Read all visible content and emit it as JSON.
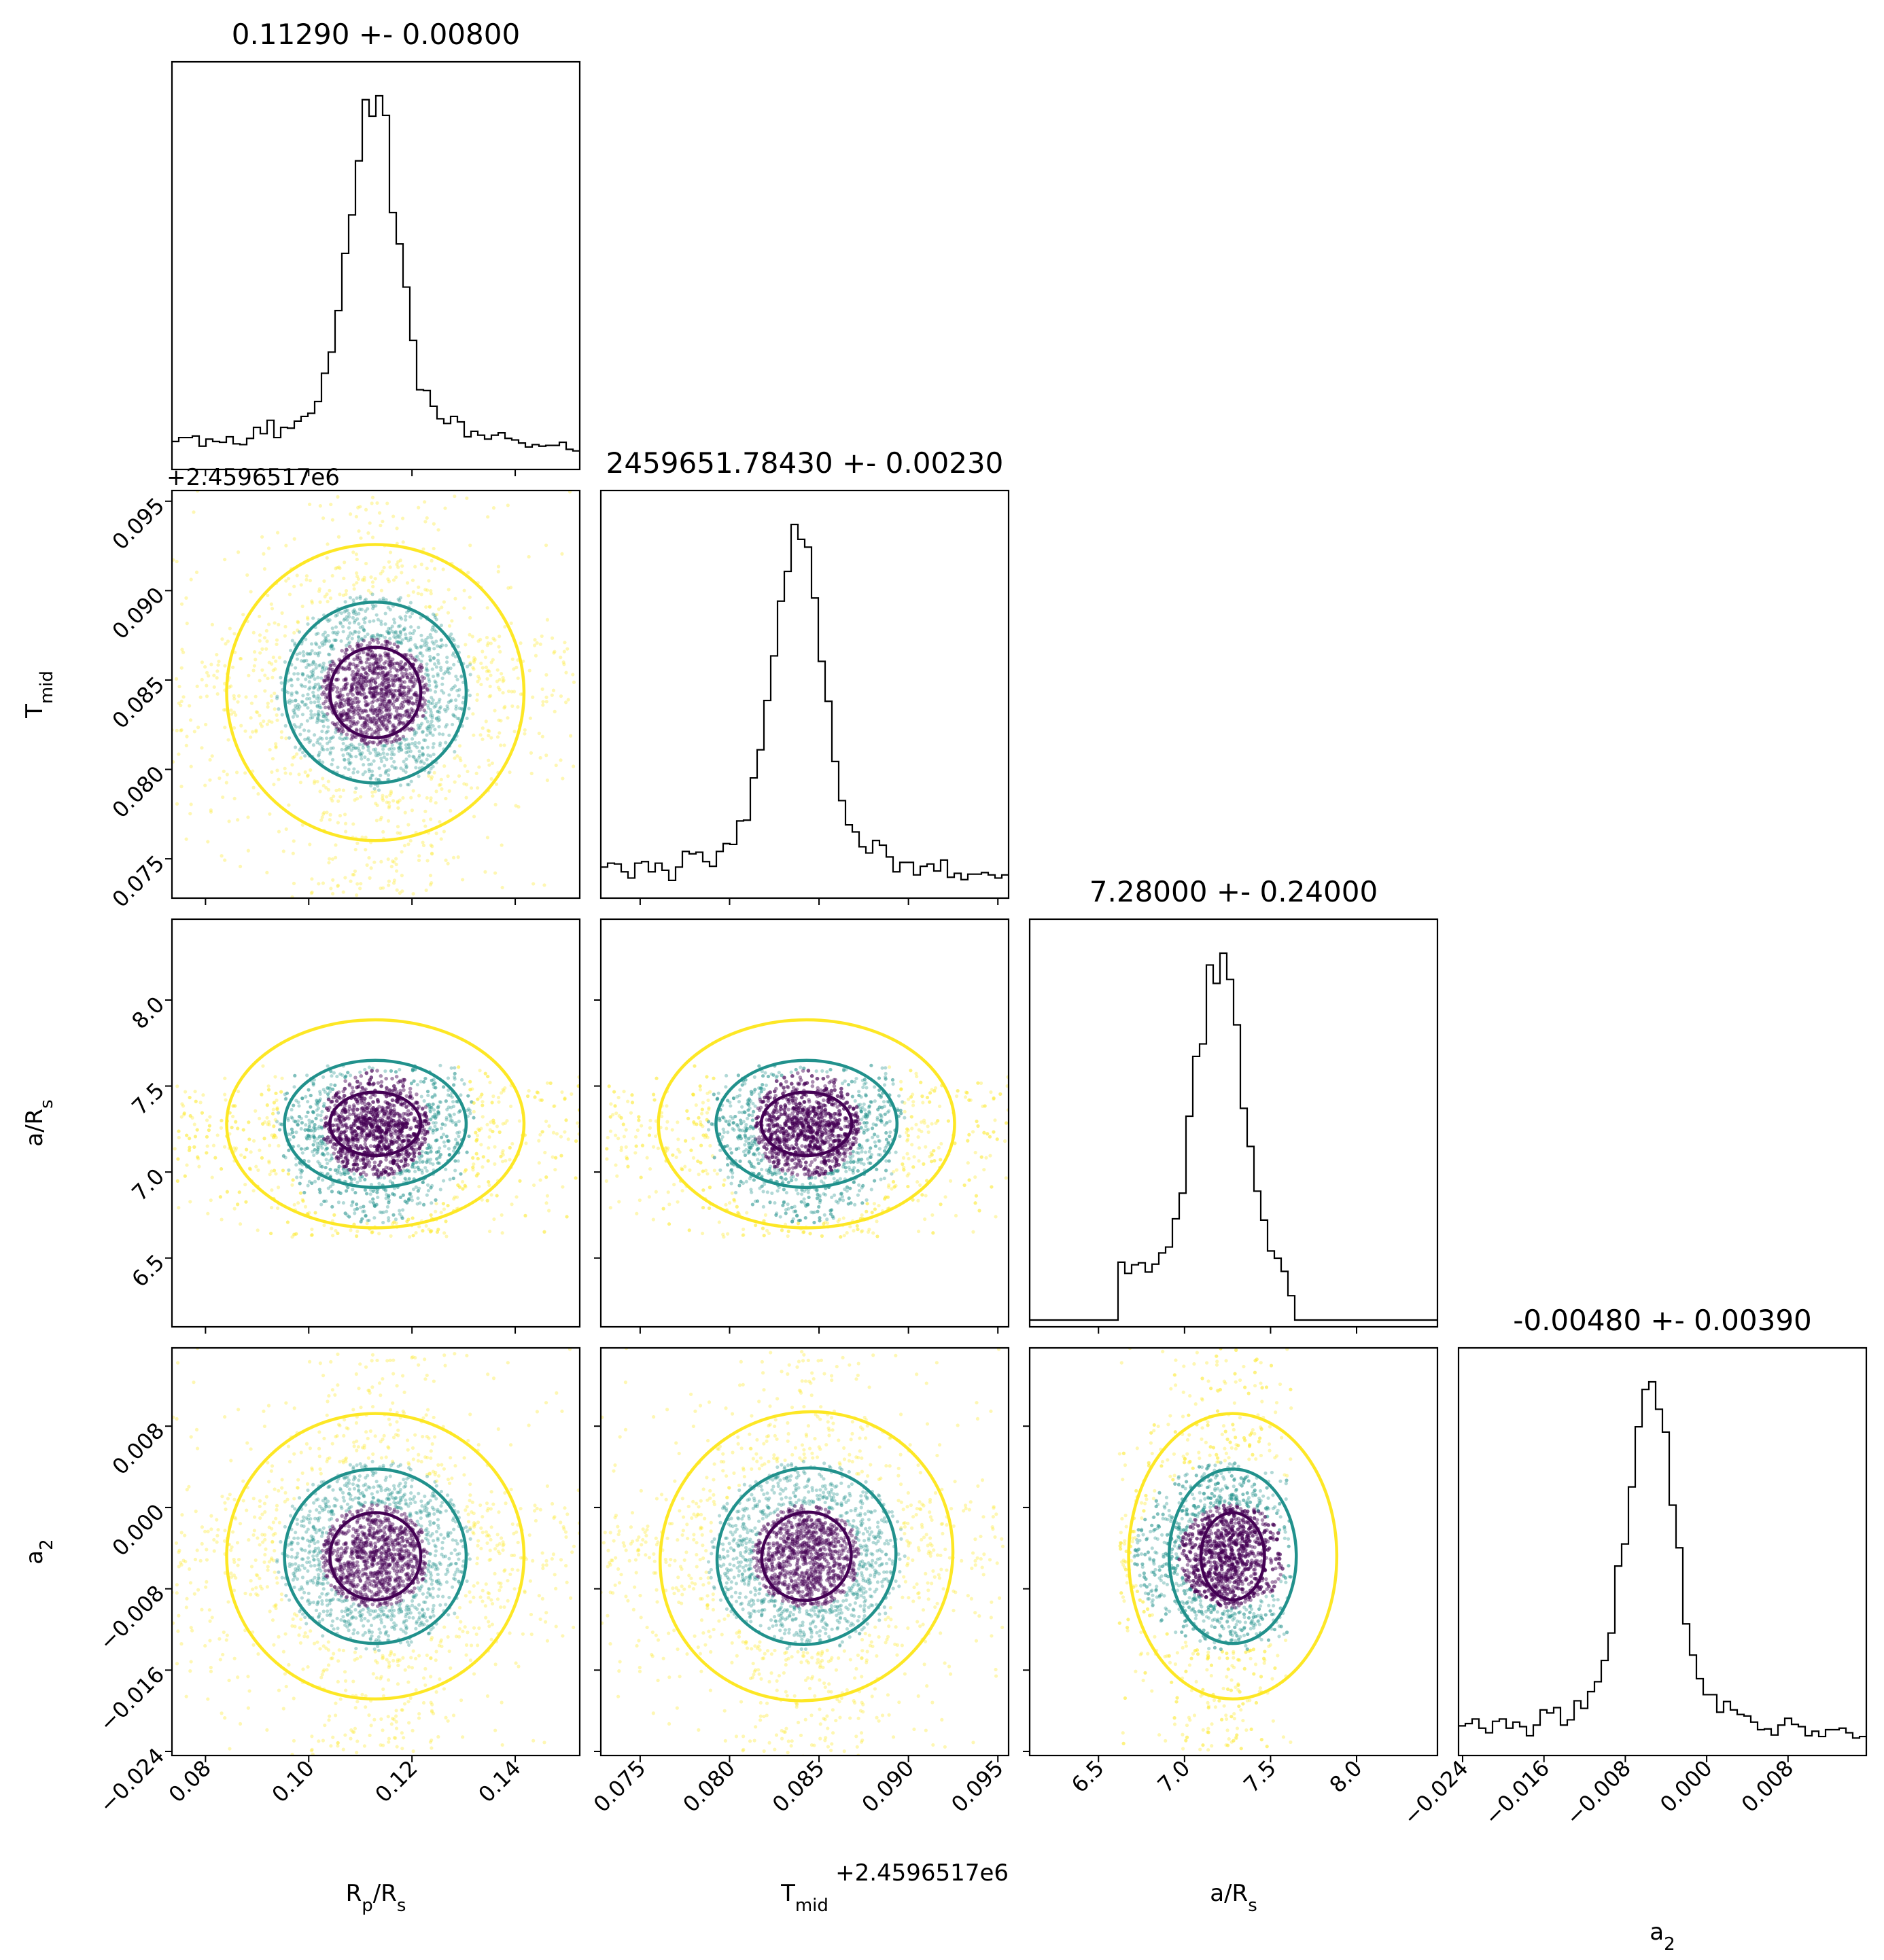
{
  "figure": {
    "type": "corner-plot",
    "colormap": [
      "#440154",
      "#21918c",
      "#fde725"
    ]
  },
  "chart_data": {
    "type": "corner",
    "parameters": [
      {
        "id": "rp",
        "label": "R_p/R_s",
        "label_main": "R",
        "label_sub": "p",
        "label_tail": "/R",
        "label_sub2": "s",
        "title": "0.11290 +- 0.00800",
        "range": [
          0.0735,
          0.1525
        ],
        "ticks": [
          0.08,
          0.1,
          0.12,
          0.14
        ],
        "tick_labels": [
          "0.08",
          "0.10",
          "0.12",
          "0.14"
        ],
        "offset_label": "",
        "mean": 0.1129,
        "sigma": 0.008,
        "hist_peak_x": 0.1125
      },
      {
        "id": "tmid",
        "label": "T_mid",
        "label_main": "T",
        "label_sub": "mid",
        "label_tail": "",
        "label_sub2": "",
        "title": "2459651.78430 +- 0.00230",
        "range": [
          0.0728,
          0.0956
        ],
        "ticks": [
          0.075,
          0.08,
          0.085,
          0.09,
          0.095
        ],
        "tick_labels": [
          "0.075",
          "0.080",
          "0.085",
          "0.090",
          "0.095"
        ],
        "offset_label": "+2.4596517e6",
        "mean": 0.0843,
        "sigma": 0.0023,
        "hist_peak_x": 0.0838
      },
      {
        "id": "ars",
        "label": "a/R_s",
        "label_main": "a/R",
        "label_sub": "s",
        "label_tail": "",
        "label_sub2": "",
        "title": "7.28000 +- 0.24000",
        "range": [
          6.1,
          8.47
        ],
        "ticks": [
          6.5,
          7.0,
          7.5,
          8.0
        ],
        "tick_labels": [
          "6.5",
          "7.0",
          "7.5",
          "8.0"
        ],
        "offset_label": "",
        "mean": 7.28,
        "sigma": 0.24,
        "prior_bounds": [
          6.62,
          7.62
        ],
        "hist_peak_x": 7.2
      },
      {
        "id": "a2",
        "label": "a_2",
        "label_main": "a",
        "label_sub": "2",
        "label_tail": "",
        "label_sub2": "",
        "title": "-0.00480 +- 0.00390",
        "range": [
          -0.0244,
          0.0157
        ],
        "ticks": [
          -0.024,
          -0.016,
          -0.008,
          0.0,
          0.008
        ],
        "tick_labels": [
          "−0.024",
          "−0.016",
          "−0.008",
          "0.000",
          "0.008"
        ],
        "offset_label": "",
        "mean": -0.0048,
        "sigma": 0.0039,
        "hist_peak_x": -0.0055
      }
    ],
    "row_offset_labels": {
      "1": "+2.4596517e6"
    },
    "contour_colors": [
      "#440154",
      "#21918c",
      "#fde725"
    ],
    "grid": false
  }
}
